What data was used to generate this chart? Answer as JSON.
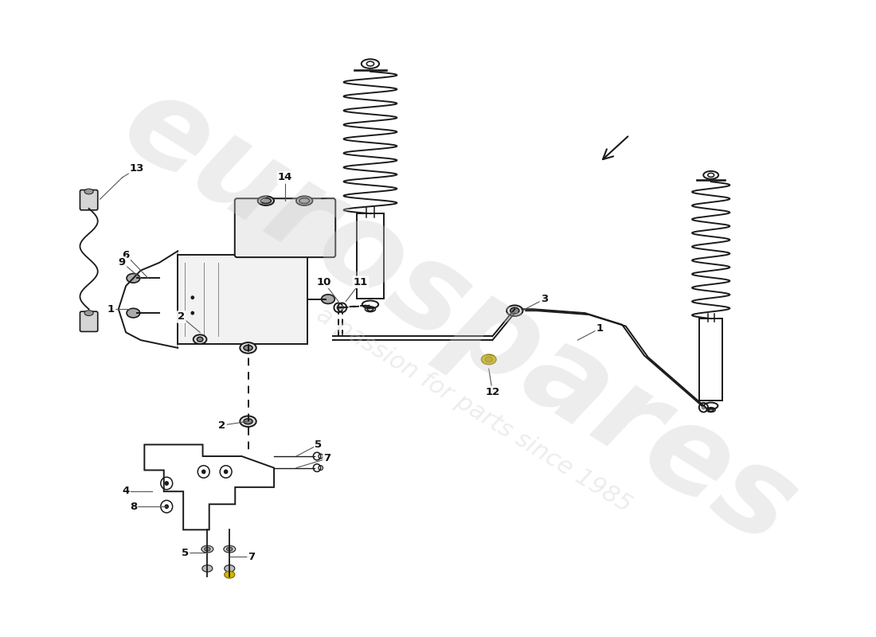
{
  "bg_color": "#ffffff",
  "line_color": "#1a1a1a",
  "line_width": 1.4,
  "highlight_color": "#d4b800",
  "figure_size": [
    11.0,
    8.0
  ],
  "dpi": 100,
  "watermark1": "eurospares",
  "watermark2": "a passion for parts since 1985"
}
